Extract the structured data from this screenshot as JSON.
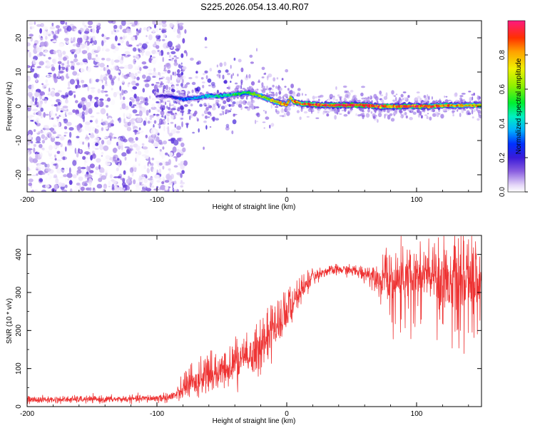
{
  "title": "S225.2026.054.13.40.R07",
  "chart_data": [
    {
      "type": "heatmap",
      "xlabel": "Height of straight line (km)",
      "ylabel": "Frequency (Hz)",
      "xlim": [
        -200,
        150
      ],
      "ylim": [
        -25,
        25
      ],
      "xticks": [
        -200,
        -100,
        0,
        100
      ],
      "xtick_labels": [
        "-200",
        "-100",
        "0",
        "100"
      ],
      "yticks": [
        -20,
        -10,
        0,
        10,
        20
      ],
      "ytick_labels": [
        "-20",
        "-10",
        "0",
        "10",
        "20"
      ],
      "colorbar": {
        "label": "Normalized spectral amplitude",
        "range": [
          0,
          1
        ],
        "ticks": [
          0.0,
          0.2,
          0.4,
          0.6,
          0.8
        ],
        "tick_labels": [
          "0.0",
          "0.2",
          "0.4",
          "0.6",
          "0.8"
        ]
      },
      "ridge": {
        "x": [
          -100,
          -90,
          -80,
          -70,
          -60,
          -50,
          -40,
          -30,
          -20,
          -10,
          -5,
          0,
          3,
          5,
          10,
          20,
          30,
          40,
          50,
          60,
          70,
          80,
          90,
          100,
          110,
          120,
          130,
          140,
          150
        ],
        "y": [
          3.0,
          3.0,
          2.0,
          2.5,
          3.0,
          3.0,
          3.5,
          4.0,
          3.0,
          1.5,
          1.0,
          0.5,
          2.5,
          1.5,
          0.8,
          0.5,
          0.3,
          0.3,
          0.3,
          0.3,
          0.0,
          0.0,
          0.0,
          0.0,
          0.0,
          0.2,
          0.2,
          0.3,
          0.3
        ],
        "amplitude": [
          0.15,
          0.2,
          0.3,
          0.35,
          0.4,
          0.45,
          0.5,
          0.55,
          0.6,
          0.7,
          0.75,
          0.8,
          0.7,
          0.8,
          0.85,
          0.9,
          0.9,
          0.95,
          0.95,
          0.9,
          0.85,
          0.85,
          0.9,
          0.9,
          0.85,
          0.85,
          0.8,
          0.75,
          0.75
        ]
      },
      "noise_region_x": [
        -200,
        -80
      ]
    },
    {
      "type": "line",
      "xlabel": "Height of straight line (km)",
      "ylabel": "SNR (10 * v/v)",
      "xlim": [
        -200,
        150
      ],
      "ylim": [
        0,
        450
      ],
      "xticks": [
        -200,
        -100,
        0,
        100
      ],
      "xtick_labels": [
        "-200",
        "-100",
        "0",
        "100"
      ],
      "yticks": [
        0,
        100,
        200,
        300,
        400
      ],
      "ytick_labels": [
        "0",
        "100",
        "200",
        "300",
        "400"
      ],
      "series": [
        {
          "name": "SNR",
          "color": "#ee3333",
          "x": [
            -200,
            -180,
            -160,
            -140,
            -120,
            -100,
            -90,
            -82,
            -78,
            -70,
            -60,
            -50,
            -40,
            -30,
            -20,
            -15,
            -10,
            -5,
            0,
            5,
            10,
            15,
            20,
            25,
            30,
            40,
            50,
            60,
            70,
            75,
            80,
            90,
            100,
            110,
            120,
            130,
            140,
            150
          ],
          "mean": [
            18,
            18,
            19,
            19,
            20,
            22,
            25,
            35,
            50,
            65,
            75,
            90,
            110,
            130,
            150,
            175,
            200,
            215,
            240,
            270,
            295,
            320,
            340,
            350,
            355,
            360,
            358,
            350,
            345,
            340,
            335,
            335,
            340,
            345,
            340,
            340,
            335,
            330
          ],
          "spread": [
            10,
            10,
            10,
            10,
            10,
            12,
            15,
            25,
            35,
            45,
            50,
            55,
            55,
            55,
            60,
            60,
            55,
            55,
            50,
            45,
            40,
            30,
            20,
            15,
            15,
            15,
            15,
            25,
            40,
            60,
            80,
            85,
            90,
            95,
            100,
            110,
            110,
            110
          ]
        }
      ]
    }
  ]
}
